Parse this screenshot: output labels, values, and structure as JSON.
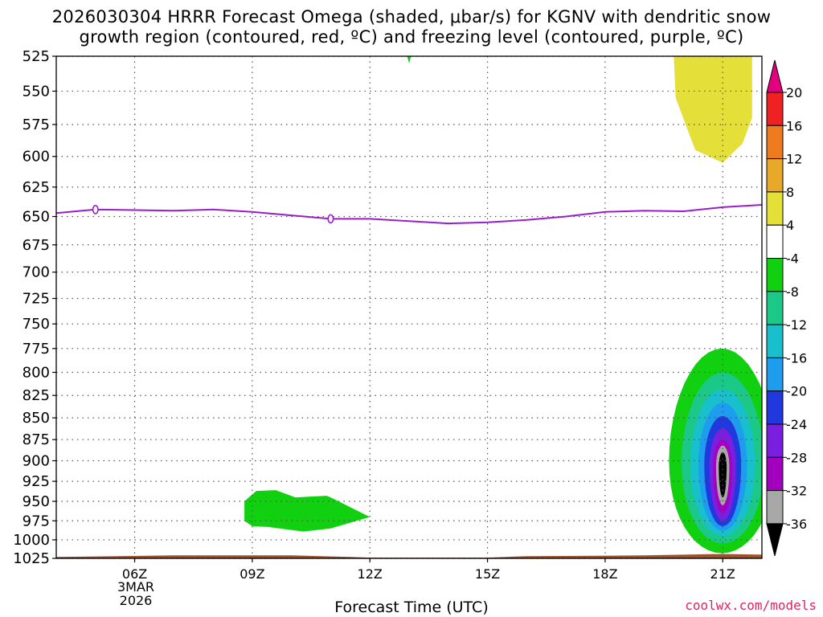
{
  "chart_data": {
    "type": "heatmap",
    "title_line1": "2026030304 HRRR Forecast Omega (shaded, μbar/s) for KGNV with dendritic snow",
    "title_line2": "growth region (contoured, red, ºC) and freezing level (contoured, purple, ºC)",
    "xlabel": "Forecast Time (UTC)",
    "x_ticks": [
      "06Z",
      "09Z",
      "12Z",
      "15Z",
      "18Z",
      "21Z"
    ],
    "x_tick_hours": [
      6,
      9,
      12,
      15,
      18,
      21
    ],
    "x_range_hours": [
      4,
      22
    ],
    "date_line1": "3MAR",
    "date_line2": "2026",
    "y_ticks": [
      "525",
      "550",
      "575",
      "600",
      "625",
      "650",
      "675",
      "700",
      "725",
      "750",
      "775",
      "800",
      "825",
      "850",
      "875",
      "900",
      "925",
      "950",
      "975",
      "1000",
      "1025"
    ],
    "y_range_hpa": [
      525,
      1025
    ],
    "y_scale": "log-pressure",
    "colorbar": {
      "labels": [
        "20",
        "16",
        "12",
        "8",
        "4",
        "-4",
        "-8",
        "-12",
        "-16",
        "-20",
        "-24",
        "-28",
        "-32",
        "-36"
      ],
      "colors": [
        "#e3007f",
        "#ee2222",
        "#ee7c1f",
        "#e8a92a",
        "#e5df3a",
        "#ffffff",
        "#10d010",
        "#1bc888",
        "#18bfcc",
        "#1e9cee",
        "#2038dd",
        "#7a1ee0",
        "#a300c0",
        "#a8a8a8",
        "#000000"
      ]
    },
    "freezing_level": {
      "color": "#9a1ec8",
      "label": "0",
      "points_hour_hpa": [
        [
          4,
          647
        ],
        [
          5,
          644
        ],
        [
          7,
          645
        ],
        [
          8,
          644
        ],
        [
          9,
          646
        ],
        [
          10,
          649
        ],
        [
          11,
          652
        ],
        [
          12,
          652
        ],
        [
          13,
          654
        ],
        [
          14,
          656
        ],
        [
          15,
          655
        ],
        [
          16,
          653
        ],
        [
          17,
          650
        ],
        [
          18,
          646
        ],
        [
          19,
          645
        ],
        [
          20,
          645.5
        ],
        [
          21,
          642
        ],
        [
          22,
          640
        ]
      ],
      "label_points_hour_hpa": [
        [
          5,
          644
        ],
        [
          11,
          652
        ]
      ]
    },
    "shaded_regions": [
      {
        "name": "omega-green-small-top",
        "level": -4
      },
      {
        "name": "omega-yellow-upper-right",
        "level": 4
      },
      {
        "name": "omega-green-lower-left",
        "level": -4
      },
      {
        "name": "omega-core-lower-right",
        "levels": [
          -4,
          -8,
          -12,
          -16,
          -20,
          -24,
          -28,
          -32,
          -36
        ]
      }
    ],
    "ground_color": "#a0522d"
  },
  "footer": {
    "credit": "coolwx.com/models"
  }
}
